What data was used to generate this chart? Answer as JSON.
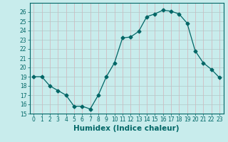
{
  "x": [
    0,
    1,
    2,
    3,
    4,
    5,
    6,
    7,
    8,
    9,
    10,
    11,
    12,
    13,
    14,
    15,
    16,
    17,
    18,
    19,
    20,
    21,
    22,
    23
  ],
  "y": [
    19,
    19,
    18,
    17.5,
    17,
    15.8,
    15.8,
    15.5,
    17,
    19,
    20.5,
    23.2,
    23.3,
    23.9,
    25.5,
    25.8,
    26.2,
    26.1,
    25.8,
    24.8,
    21.8,
    20.5,
    19.8,
    18.9
  ],
  "line_color": "#006666",
  "marker": "D",
  "marker_size": 2.5,
  "bg_color": "#c8ecec",
  "grid_color_v": "#b0c8c8",
  "grid_color_h": "#d4b0b8",
  "xlabel": "Humidex (Indice chaleur)",
  "ylim": [
    15,
    27
  ],
  "xlim": [
    -0.5,
    23.5
  ],
  "yticks": [
    15,
    16,
    17,
    18,
    19,
    20,
    21,
    22,
    23,
    24,
    25,
    26
  ],
  "xticks": [
    0,
    1,
    2,
    3,
    4,
    5,
    6,
    7,
    8,
    9,
    10,
    11,
    12,
    13,
    14,
    15,
    16,
    17,
    18,
    19,
    20,
    21,
    22,
    23
  ],
  "tick_label_fontsize": 5.5,
  "xlabel_fontsize": 7.5
}
